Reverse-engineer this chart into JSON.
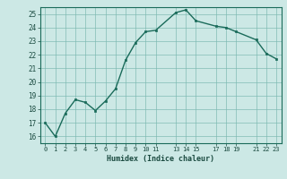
{
  "x": [
    0,
    1,
    2,
    3,
    4,
    5,
    6,
    7,
    8,
    9,
    10,
    11,
    13,
    14,
    15,
    17,
    18,
    19,
    21,
    22,
    23
  ],
  "y": [
    17.0,
    16.0,
    17.7,
    18.7,
    18.5,
    17.9,
    18.6,
    19.5,
    21.6,
    22.9,
    23.7,
    23.8,
    25.1,
    25.3,
    24.5,
    24.1,
    24.0,
    23.7,
    23.1,
    22.1,
    21.7
  ],
  "xlabel": "Humidex (Indice chaleur)",
  "xlim": [
    -0.5,
    23.5
  ],
  "ylim": [
    15.5,
    25.5
  ],
  "xticks": [
    0,
    1,
    2,
    3,
    4,
    5,
    6,
    7,
    8,
    9,
    10,
    11,
    13,
    14,
    15,
    17,
    18,
    19,
    21,
    22,
    23
  ],
  "yticks": [
    16,
    17,
    18,
    19,
    20,
    21,
    22,
    23,
    24,
    25
  ],
  "line_color": "#1a6b5a",
  "marker_color": "#1a6b5a",
  "bg_color": "#cce8e5",
  "grid_color": "#7ab8b0",
  "fig_bg": "#cce8e5"
}
